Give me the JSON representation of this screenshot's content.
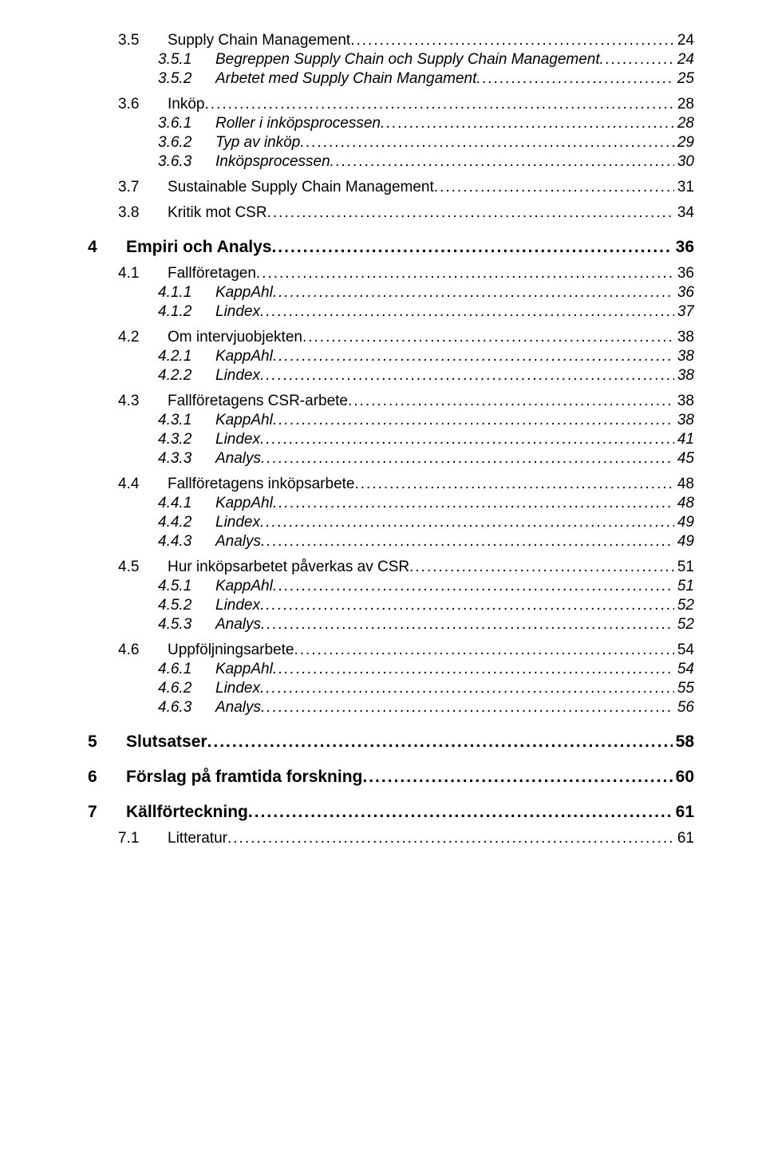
{
  "colors": {
    "text": "#000000",
    "background": "#ffffff",
    "dot": "#000000"
  },
  "typography": {
    "family": "Arial",
    "lvl1_fontsize_pt": 16,
    "lvl2_fontsize_pt": 14,
    "lvl3_fontsize_pt": 14,
    "lvl1_weight": "bold",
    "lvl3_style": "italic"
  },
  "dot_char": ".",
  "entries": [
    {
      "level": 2,
      "num": "3.5",
      "label": "Supply Chain Management",
      "page": "24"
    },
    {
      "level": 3,
      "num": "3.5.1",
      "label": "Begreppen Supply Chain och Supply Chain Management",
      "page": "24"
    },
    {
      "level": 3,
      "num": "3.5.2",
      "label": "Arbetet med Supply Chain Mangament",
      "page": "25"
    },
    {
      "level": 2,
      "num": "3.6",
      "label": "Inköp",
      "page": "28"
    },
    {
      "level": 3,
      "num": "3.6.1",
      "label": "Roller i inköpsprocessen",
      "page": "28"
    },
    {
      "level": 3,
      "num": "3.6.2",
      "label": "Typ av inköp",
      "page": "29"
    },
    {
      "level": 3,
      "num": "3.6.3",
      "label": "Inköpsprocessen",
      "page": "30"
    },
    {
      "level": 2,
      "num": "3.7",
      "label": "Sustainable Supply Chain Management",
      "page": "31"
    },
    {
      "level": 2,
      "num": "3.8",
      "label": "Kritik mot CSR",
      "page": "34"
    },
    {
      "level": 1,
      "num": "4",
      "label": "Empiri och Analys",
      "page": "36"
    },
    {
      "level": 2,
      "num": "4.1",
      "label": "Fallföretagen",
      "page": "36"
    },
    {
      "level": 3,
      "num": "4.1.1",
      "label": "KappAhl",
      "page": "36"
    },
    {
      "level": 3,
      "num": "4.1.2",
      "label": "Lindex",
      "page": "37"
    },
    {
      "level": 2,
      "num": "4.2",
      "label": "Om intervjuobjekten",
      "page": "38"
    },
    {
      "level": 3,
      "num": "4.2.1",
      "label": "KappAhl",
      "page": "38"
    },
    {
      "level": 3,
      "num": "4.2.2",
      "label": "Lindex",
      "page": "38"
    },
    {
      "level": 2,
      "num": "4.3",
      "label": "Fallföretagens CSR-arbete",
      "page": "38"
    },
    {
      "level": 3,
      "num": "4.3.1",
      "label": "KappAhl",
      "page": "38"
    },
    {
      "level": 3,
      "num": "4.3.2",
      "label": "Lindex",
      "page": "41"
    },
    {
      "level": 3,
      "num": "4.3.3",
      "label": "Analys",
      "page": "45"
    },
    {
      "level": 2,
      "num": "4.4",
      "label": "Fallföretagens inköpsarbete",
      "page": "48"
    },
    {
      "level": 3,
      "num": "4.4.1",
      "label": "KappAhl",
      "page": "48"
    },
    {
      "level": 3,
      "num": "4.4.2",
      "label": "Lindex",
      "page": "49"
    },
    {
      "level": 3,
      "num": "4.4.3",
      "label": "Analys",
      "page": "49"
    },
    {
      "level": 2,
      "num": "4.5",
      "label": "Hur inköpsarbetet påverkas av CSR",
      "page": "51"
    },
    {
      "level": 3,
      "num": "4.5.1",
      "label": "KappAhl",
      "page": "51"
    },
    {
      "level": 3,
      "num": "4.5.2",
      "label": "Lindex",
      "page": "52"
    },
    {
      "level": 3,
      "num": "4.5.3",
      "label": "Analys",
      "page": "52"
    },
    {
      "level": 2,
      "num": "4.6",
      "label": "Uppföljningsarbete",
      "page": "54"
    },
    {
      "level": 3,
      "num": "4.6.1",
      "label": "KappAhl",
      "page": "54"
    },
    {
      "level": 3,
      "num": "4.6.2",
      "label": "Lindex",
      "page": "55"
    },
    {
      "level": 3,
      "num": "4.6.3",
      "label": "Analys",
      "page": "56"
    },
    {
      "level": 1,
      "num": "5",
      "label": "Slutsatser",
      "page": "58"
    },
    {
      "level": 1,
      "num": "6",
      "label": "Förslag på framtida forskning",
      "page": "60"
    },
    {
      "level": 1,
      "num": "7",
      "label": "Källförteckning",
      "page": "61"
    },
    {
      "level": 2,
      "num": "7.1",
      "label": "Litteratur",
      "page": "61"
    }
  ]
}
